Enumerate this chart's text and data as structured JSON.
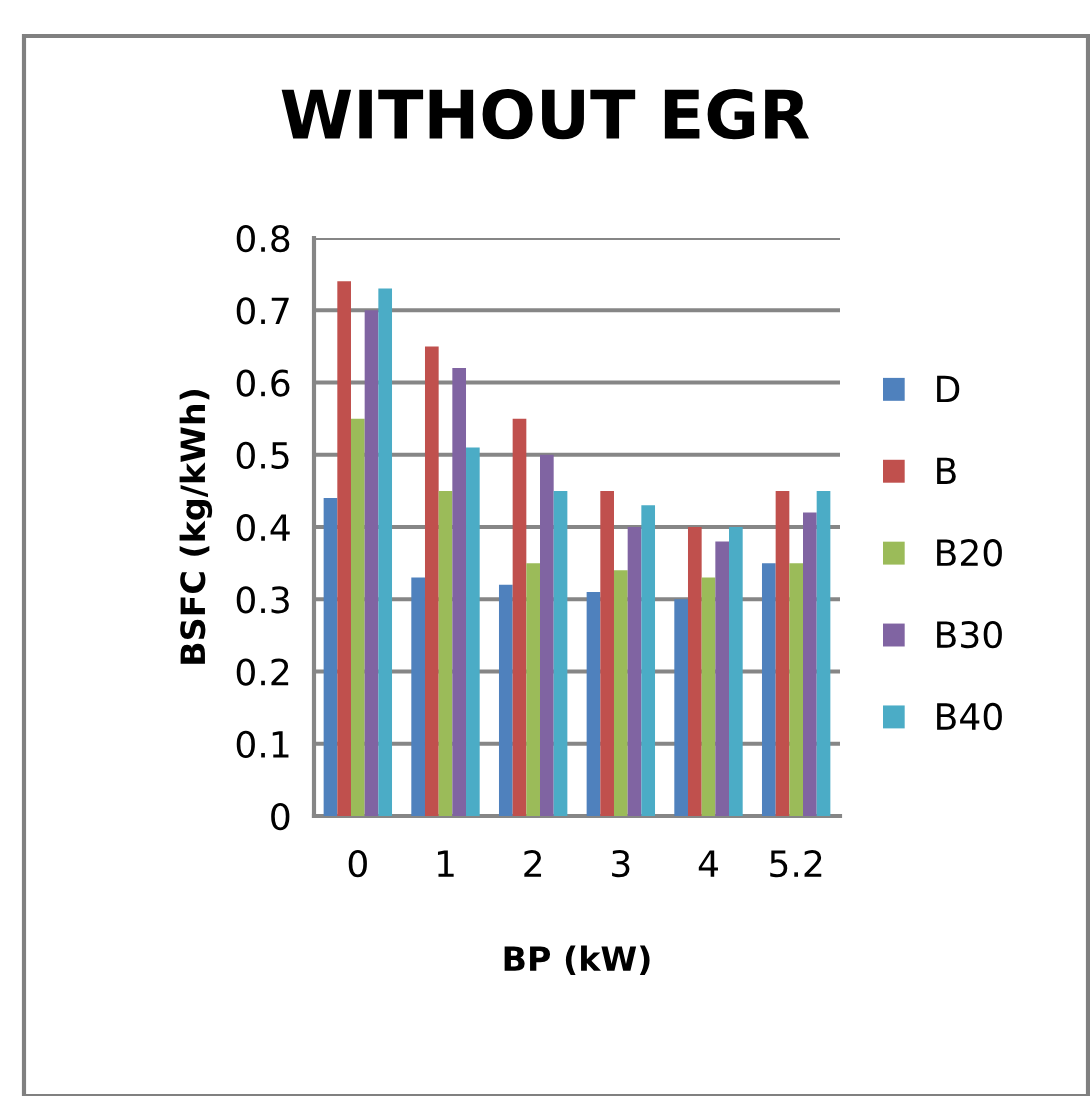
{
  "chart_data": {
    "type": "bar",
    "title": "WITHOUT EGR",
    "xlabel": "BP (kW)",
    "ylabel": "BSFC (kg/kWh)",
    "categories": [
      "0",
      "1",
      "2",
      "3",
      "4",
      "5.2"
    ],
    "series": [
      {
        "name": "D",
        "color": "#4f81bd",
        "values": [
          0.44,
          0.33,
          0.32,
          0.31,
          0.3,
          0.35
        ]
      },
      {
        "name": "B",
        "color": "#c0504d",
        "values": [
          0.74,
          0.65,
          0.55,
          0.45,
          0.4,
          0.45
        ]
      },
      {
        "name": "B20",
        "color": "#9bbb59",
        "values": [
          0.55,
          0.45,
          0.35,
          0.34,
          0.33,
          0.35
        ]
      },
      {
        "name": "B30",
        "color": "#8064a2",
        "values": [
          0.7,
          0.62,
          0.5,
          0.4,
          0.38,
          0.42
        ]
      },
      {
        "name": "B40",
        "color": "#4bacc6",
        "values": [
          0.73,
          0.51,
          0.45,
          0.43,
          0.4,
          0.45
        ]
      }
    ],
    "ylim": [
      0,
      0.8
    ],
    "yticks": [
      0,
      0.1,
      0.2,
      0.3,
      0.4,
      0.5,
      0.6,
      0.7,
      0.8
    ],
    "grid": "y",
    "legend": "right"
  }
}
